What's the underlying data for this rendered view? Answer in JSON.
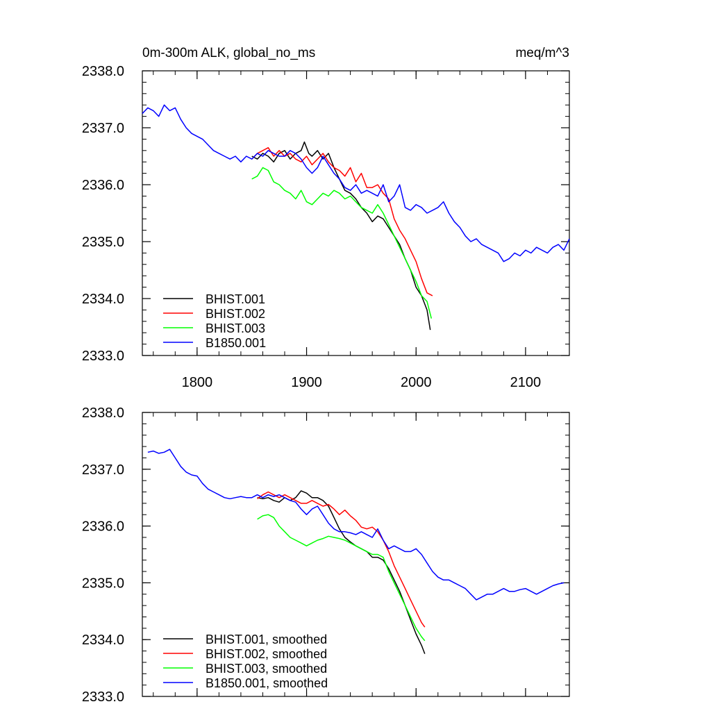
{
  "figure": {
    "title_left": "0m-300m ALK, global_no_ms",
    "title_right": "meq/m^3"
  },
  "chart_data": [
    {
      "type": "line",
      "title": "0m-300m ALK, global_no_ms",
      "units": "meq/m^3",
      "xlim": [
        1750,
        2140
      ],
      "ylim": [
        2333.0,
        2338.0
      ],
      "xticks": [
        1800,
        1900,
        2000,
        2100
      ],
      "xtick_labels": [
        "1800",
        "1900",
        "2000",
        "2100"
      ],
      "yticks": [
        2333,
        2334,
        2335,
        2336,
        2337,
        2338
      ],
      "ytick_labels": [
        "2333.0",
        "2334.0",
        "2335.0",
        "2336.0",
        "2337.0",
        "2338.0"
      ],
      "legend_position": "bottom-left",
      "series": [
        {
          "name": "BHIST.001",
          "color": "#000000",
          "x": [
            1850,
            1855,
            1860,
            1865,
            1870,
            1875,
            1880,
            1885,
            1890,
            1895,
            1898,
            1902,
            1905,
            1910,
            1915,
            1920,
            1925,
            1930,
            1935,
            1940,
            1945,
            1950,
            1955,
            1960,
            1965,
            1970,
            1975,
            1980,
            1985,
            1990,
            1995,
            2000,
            2005,
            2010,
            2013
          ],
          "y": [
            2336.5,
            2336.45,
            2336.55,
            2336.5,
            2336.4,
            2336.55,
            2336.6,
            2336.45,
            2336.55,
            2336.6,
            2336.75,
            2336.55,
            2336.5,
            2336.6,
            2336.45,
            2336.55,
            2336.3,
            2336.1,
            2335.9,
            2335.85,
            2335.75,
            2335.6,
            2335.5,
            2335.35,
            2335.45,
            2335.4,
            2335.25,
            2335.1,
            2334.95,
            2334.7,
            2334.5,
            2334.2,
            2334.05,
            2333.8,
            2333.45
          ]
        },
        {
          "name": "BHIST.002",
          "color": "#ff0000",
          "x": [
            1850,
            1855,
            1860,
            1865,
            1870,
            1875,
            1880,
            1885,
            1890,
            1895,
            1900,
            1905,
            1910,
            1915,
            1920,
            1925,
            1930,
            1935,
            1940,
            1945,
            1950,
            1955,
            1960,
            1965,
            1970,
            1975,
            1980,
            1985,
            1990,
            1995,
            2000,
            2005,
            2010,
            2015
          ],
          "y": [
            2336.45,
            2336.55,
            2336.6,
            2336.65,
            2336.5,
            2336.6,
            2336.5,
            2336.55,
            2336.45,
            2336.4,
            2336.5,
            2336.35,
            2336.45,
            2336.55,
            2336.4,
            2336.3,
            2336.25,
            2336.15,
            2336.3,
            2336.05,
            2336.2,
            2335.95,
            2335.95,
            2336.0,
            2335.85,
            2335.75,
            2335.4,
            2335.2,
            2335.05,
            2334.85,
            2334.65,
            2334.35,
            2334.1,
            2334.05
          ]
        },
        {
          "name": "BHIST.003",
          "color": "#00ff00",
          "x": [
            1850,
            1855,
            1860,
            1865,
            1870,
            1875,
            1880,
            1885,
            1890,
            1895,
            1900,
            1905,
            1910,
            1915,
            1920,
            1925,
            1930,
            1935,
            1940,
            1945,
            1950,
            1955,
            1960,
            1965,
            1970,
            1975,
            1980,
            1985,
            1990,
            1995,
            2000,
            2005,
            2010,
            2014
          ],
          "y": [
            2336.1,
            2336.15,
            2336.3,
            2336.25,
            2336.05,
            2336.0,
            2335.9,
            2335.85,
            2335.75,
            2335.9,
            2335.7,
            2335.65,
            2335.75,
            2335.85,
            2335.8,
            2335.9,
            2335.85,
            2335.75,
            2335.8,
            2335.7,
            2335.6,
            2335.55,
            2335.5,
            2335.65,
            2335.5,
            2335.3,
            2335.1,
            2334.9,
            2334.7,
            2334.5,
            2334.3,
            2334.05,
            2333.95,
            2333.65
          ]
        },
        {
          "name": "B1850.001",
          "color": "#0000ff",
          "x": [
            1750,
            1755,
            1760,
            1765,
            1770,
            1775,
            1780,
            1785,
            1790,
            1795,
            1800,
            1805,
            1810,
            1815,
            1820,
            1825,
            1830,
            1835,
            1840,
            1845,
            1850,
            1855,
            1860,
            1865,
            1870,
            1875,
            1880,
            1885,
            1890,
            1895,
            1900,
            1905,
            1910,
            1915,
            1920,
            1925,
            1930,
            1935,
            1940,
            1945,
            1950,
            1955,
            1960,
            1965,
            1970,
            1975,
            1980,
            1985,
            1990,
            1995,
            2000,
            2005,
            2010,
            2015,
            2020,
            2025,
            2030,
            2035,
            2040,
            2045,
            2050,
            2055,
            2060,
            2065,
            2070,
            2075,
            2080,
            2085,
            2090,
            2095,
            2100,
            2105,
            2110,
            2115,
            2120,
            2125,
            2130,
            2135,
            2140
          ],
          "y": [
            2337.25,
            2337.35,
            2337.3,
            2337.2,
            2337.4,
            2337.3,
            2337.35,
            2337.15,
            2337.0,
            2336.9,
            2336.85,
            2336.8,
            2336.7,
            2336.6,
            2336.55,
            2336.5,
            2336.45,
            2336.5,
            2336.4,
            2336.5,
            2336.45,
            2336.55,
            2336.5,
            2336.6,
            2336.55,
            2336.5,
            2336.5,
            2336.6,
            2336.55,
            2336.45,
            2336.3,
            2336.2,
            2336.3,
            2336.5,
            2336.35,
            2336.2,
            2336.1,
            2335.95,
            2335.9,
            2336.0,
            2335.85,
            2335.9,
            2335.85,
            2335.8,
            2336.0,
            2335.7,
            2335.8,
            2336.0,
            2335.6,
            2335.55,
            2335.65,
            2335.6,
            2335.5,
            2335.55,
            2335.6,
            2335.7,
            2335.5,
            2335.35,
            2335.25,
            2335.1,
            2335.0,
            2335.05,
            2334.95,
            2334.9,
            2334.85,
            2334.8,
            2334.65,
            2334.7,
            2334.8,
            2334.75,
            2334.85,
            2334.8,
            2334.9,
            2334.85,
            2334.8,
            2334.9,
            2334.95,
            2334.85,
            2335.05
          ]
        }
      ]
    },
    {
      "type": "line",
      "xlim": [
        1750,
        2140
      ],
      "ylim": [
        2333.0,
        2338.0
      ],
      "yticks": [
        2333,
        2334,
        2335,
        2336,
        2337,
        2338
      ],
      "ytick_labels": [
        "2333.0",
        "2334.0",
        "2335.0",
        "2336.0",
        "2337.0",
        "2338.0"
      ],
      "legend_position": "bottom-left",
      "series": [
        {
          "name": "BHIST.001, smoothed",
          "color": "#000000",
          "x": [
            1855,
            1860,
            1865,
            1870,
            1875,
            1880,
            1885,
            1890,
            1895,
            1900,
            1905,
            1910,
            1915,
            1920,
            1925,
            1930,
            1935,
            1940,
            1945,
            1950,
            1955,
            1960,
            1965,
            1970,
            1975,
            1980,
            1985,
            1990,
            1995,
            2000,
            2005,
            2008
          ],
          "y": [
            2336.5,
            2336.48,
            2336.5,
            2336.45,
            2336.42,
            2336.5,
            2336.45,
            2336.5,
            2336.62,
            2336.58,
            2336.5,
            2336.5,
            2336.45,
            2336.35,
            2336.15,
            2335.95,
            2335.8,
            2335.72,
            2335.65,
            2335.6,
            2335.55,
            2335.45,
            2335.45,
            2335.4,
            2335.25,
            2335.05,
            2334.85,
            2334.6,
            2334.35,
            2334.1,
            2333.9,
            2333.75
          ]
        },
        {
          "name": "BHIST.002, smoothed",
          "color": "#ff0000",
          "x": [
            1855,
            1860,
            1865,
            1870,
            1875,
            1880,
            1885,
            1890,
            1895,
            1900,
            1905,
            1910,
            1915,
            1920,
            1925,
            1930,
            1935,
            1940,
            1945,
            1950,
            1955,
            1960,
            1965,
            1970,
            1975,
            1980,
            1985,
            1990,
            1995,
            2000,
            2005,
            2008
          ],
          "y": [
            2336.48,
            2336.55,
            2336.6,
            2336.55,
            2336.5,
            2336.55,
            2336.5,
            2336.45,
            2336.4,
            2336.4,
            2336.45,
            2336.4,
            2336.35,
            2336.38,
            2336.3,
            2336.2,
            2336.28,
            2336.18,
            2336.1,
            2335.98,
            2335.95,
            2335.98,
            2335.9,
            2335.75,
            2335.55,
            2335.3,
            2335.1,
            2334.9,
            2334.7,
            2334.5,
            2334.3,
            2334.22
          ]
        },
        {
          "name": "BHIST.003, smoothed",
          "color": "#00ff00",
          "x": [
            1855,
            1860,
            1865,
            1870,
            1875,
            1880,
            1885,
            1890,
            1895,
            1900,
            1905,
            1910,
            1915,
            1920,
            1925,
            1930,
            1935,
            1940,
            1945,
            1950,
            1955,
            1960,
            1965,
            1970,
            1975,
            1980,
            1985,
            1990,
            1995,
            2000,
            2005,
            2008
          ],
          "y": [
            2336.12,
            2336.18,
            2336.2,
            2336.15,
            2336.0,
            2335.9,
            2335.8,
            2335.75,
            2335.7,
            2335.65,
            2335.7,
            2335.75,
            2335.78,
            2335.82,
            2335.8,
            2335.78,
            2335.75,
            2335.7,
            2335.65,
            2335.6,
            2335.55,
            2335.5,
            2335.5,
            2335.45,
            2335.2,
            2335.0,
            2334.8,
            2334.6,
            2334.4,
            2334.2,
            2334.05,
            2333.98
          ]
        },
        {
          "name": "B1850.001, smoothed",
          "color": "#0000ff",
          "x": [
            1755,
            1760,
            1765,
            1770,
            1775,
            1780,
            1785,
            1790,
            1795,
            1800,
            1805,
            1810,
            1815,
            1820,
            1825,
            1830,
            1835,
            1840,
            1845,
            1850,
            1855,
            1860,
            1865,
            1870,
            1875,
            1880,
            1885,
            1890,
            1895,
            1900,
            1905,
            1910,
            1915,
            1920,
            1925,
            1930,
            1935,
            1940,
            1945,
            1950,
            1955,
            1960,
            1965,
            1970,
            1975,
            1980,
            1985,
            1990,
            1995,
            2000,
            2005,
            2010,
            2015,
            2020,
            2025,
            2030,
            2035,
            2040,
            2045,
            2050,
            2055,
            2060,
            2065,
            2070,
            2075,
            2080,
            2085,
            2090,
            2095,
            2100,
            2105,
            2110,
            2115,
            2120,
            2125,
            2130,
            2135
          ],
          "y": [
            2337.3,
            2337.32,
            2337.28,
            2337.3,
            2337.35,
            2337.2,
            2337.05,
            2336.95,
            2336.9,
            2336.88,
            2336.75,
            2336.65,
            2336.6,
            2336.55,
            2336.5,
            2336.48,
            2336.5,
            2336.52,
            2336.5,
            2336.5,
            2336.55,
            2336.5,
            2336.55,
            2336.52,
            2336.55,
            2336.5,
            2336.45,
            2336.42,
            2336.3,
            2336.2,
            2336.3,
            2336.35,
            2336.2,
            2336.05,
            2335.95,
            2335.9,
            2335.9,
            2335.88,
            2335.85,
            2335.9,
            2335.85,
            2335.8,
            2335.95,
            2335.75,
            2335.6,
            2335.65,
            2335.6,
            2335.55,
            2335.55,
            2335.6,
            2335.5,
            2335.35,
            2335.2,
            2335.1,
            2335.05,
            2335.05,
            2335.0,
            2334.95,
            2334.9,
            2334.8,
            2334.7,
            2334.75,
            2334.8,
            2334.8,
            2334.85,
            2334.9,
            2334.85,
            2334.85,
            2334.88,
            2334.9,
            2334.85,
            2334.8,
            2334.85,
            2334.9,
            2334.95,
            2334.98,
            2335.0
          ]
        }
      ]
    }
  ]
}
